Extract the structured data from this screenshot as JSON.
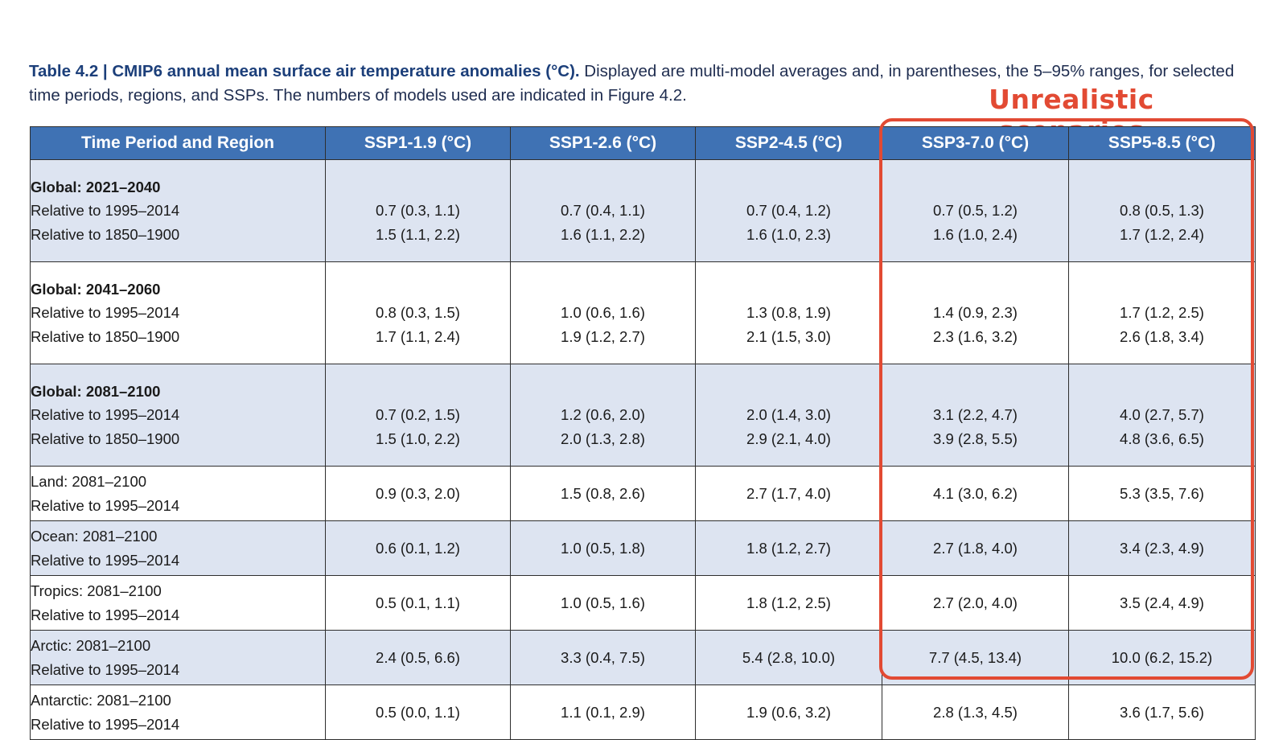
{
  "caption": {
    "title": "Table 4.2 | CMIP6 annual mean surface air temperature anomalies (°C).",
    "text": " Displayed are multi-model averages and, in parentheses, the 5–95% ranges, for selected time periods, regions, and SSPs. The numbers of models used are indicated in Figure 4.2."
  },
  "annotation": {
    "label": "Unrealistic scenarios",
    "color": "#e24a33"
  },
  "colors": {
    "header": "#3f72b4",
    "shade": "#dde4f1"
  },
  "table": {
    "headers": [
      "Time Period and Region",
      "SSP1-1.9 (°C)",
      "SSP1-2.6 (°C)",
      "SSP2-4.5 (°C)",
      "SSP3-7.0 (°C)",
      "SSP5-8.5 (°C)"
    ],
    "rows": [
      {
        "region": "Global: 2021–2040",
        "bold": true,
        "lines": [
          {
            "label": "Relative to 1995–2014",
            "values": [
              "0.7 (0.3, 1.1)",
              "0.7 (0.4, 1.1)",
              "0.7 (0.4, 1.2)",
              "0.7 (0.5, 1.2)",
              "0.8 (0.5, 1.3)"
            ]
          },
          {
            "label": "Relative to 1850–1900",
            "values": [
              "1.5 (1.1, 2.2)",
              "1.6 (1.1, 2.2)",
              "1.6 (1.0, 2.3)",
              "1.6 (1.0, 2.4)",
              "1.7 (1.2, 2.4)"
            ]
          }
        ]
      },
      {
        "region": "Global: 2041–2060",
        "bold": true,
        "lines": [
          {
            "label": "Relative to 1995–2014",
            "values": [
              "0.8 (0.3, 1.5)",
              "1.0 (0.6, 1.6)",
              "1.3 (0.8, 1.9)",
              "1.4 (0.9, 2.3)",
              "1.7 (1.2, 2.5)"
            ]
          },
          {
            "label": "Relative to 1850–1900",
            "values": [
              "1.7 (1.1, 2.4)",
              "1.9 (1.2, 2.7)",
              "2.1 (1.5, 3.0)",
              "2.3 (1.6, 3.2)",
              "2.6 (1.8, 3.4)"
            ]
          }
        ]
      },
      {
        "region": "Global: 2081–2100",
        "bold": true,
        "lines": [
          {
            "label": "Relative to 1995–2014",
            "values": [
              "0.7 (0.2, 1.5)",
              "1.2 (0.6, 2.0)",
              "2.0 (1.4, 3.0)",
              "3.1 (2.2, 4.7)",
              "4.0 (2.7, 5.7)"
            ]
          },
          {
            "label": "Relative to 1850–1900",
            "values": [
              "1.5 (1.0, 2.2)",
              "2.0 (1.3, 2.8)",
              "2.9 (2.1, 4.0)",
              "3.9 (2.8, 5.5)",
              "4.8 (3.6, 6.5)"
            ]
          }
        ]
      },
      {
        "region": "Land: 2081–2100",
        "bold": false,
        "lines": [
          {
            "label": "Relative to 1995–2014",
            "values": [
              "0.9 (0.3, 2.0)",
              "1.5 (0.8, 2.6)",
              "2.7 (1.7, 4.0)",
              "4.1 (3.0, 6.2)",
              "5.3 (3.5, 7.6)"
            ]
          }
        ]
      },
      {
        "region": "Ocean: 2081–2100",
        "bold": false,
        "lines": [
          {
            "label": "Relative to 1995–2014",
            "values": [
              "0.6 (0.1, 1.2)",
              "1.0 (0.5, 1.8)",
              "1.8 (1.2, 2.7)",
              "2.7 (1.8, 4.0)",
              "3.4 (2.3, 4.9)"
            ]
          }
        ]
      },
      {
        "region": "Tropics: 2081–2100",
        "bold": false,
        "lines": [
          {
            "label": "Relative to 1995–2014",
            "values": [
              "0.5 (0.1, 1.1)",
              "1.0 (0.5, 1.6)",
              "1.8 (1.2, 2.5)",
              "2.7 (2.0, 4.0)",
              "3.5 (2.4, 4.9)"
            ]
          }
        ]
      },
      {
        "region": "Arctic: 2081–2100",
        "bold": false,
        "lines": [
          {
            "label": "Relative to 1995–2014",
            "values": [
              "2.4 (0.5, 6.6)",
              "3.3 (0.4, 7.5)",
              "5.4 (2.8, 10.0)",
              "7.7 (4.5, 13.4)",
              "10.0 (6.2, 15.2)"
            ]
          }
        ]
      },
      {
        "region": "Antarctic: 2081–2100",
        "bold": false,
        "lines": [
          {
            "label": "Relative to 1995–2014",
            "values": [
              "0.5 (0.0, 1.1)",
              "1.1 (0.1, 2.9)",
              "1.9 (0.6, 3.2)",
              "2.8 (1.3, 4.5)",
              "3.6 (1.7, 5.6)"
            ]
          }
        ]
      }
    ]
  }
}
